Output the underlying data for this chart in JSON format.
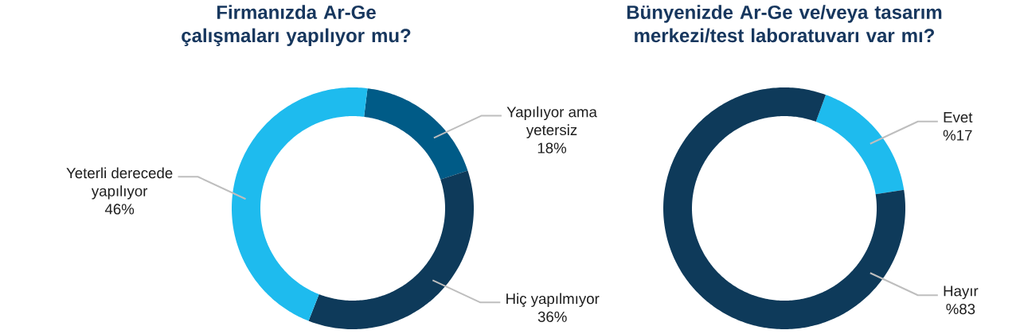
{
  "chart_data": [
    {
      "type": "donut",
      "title": "Firmanızda Ar-Ge çalışmaları yapılıyor mu?",
      "categories": [
        "Yapılıyor ama yetersiz",
        "Hiç yapılmıyor",
        "Yeterli derecede yapılıyor"
      ],
      "values": [
        18,
        36,
        46
      ],
      "value_labels": [
        "18%",
        "36%",
        "46%"
      ],
      "colors": [
        "#005b87",
        "#0e3a5a",
        "#1ebbee"
      ]
    },
    {
      "type": "donut",
      "title": "Bünyenizde Ar-Ge ve/veya tasarım merkezi/test laboratuvarı var mı?",
      "categories": [
        "Evet",
        "Hayır"
      ],
      "values": [
        17,
        83
      ],
      "value_labels": [
        "%17",
        "%83"
      ],
      "colors": [
        "#1ebbee",
        "#0e3a5a"
      ]
    }
  ]
}
